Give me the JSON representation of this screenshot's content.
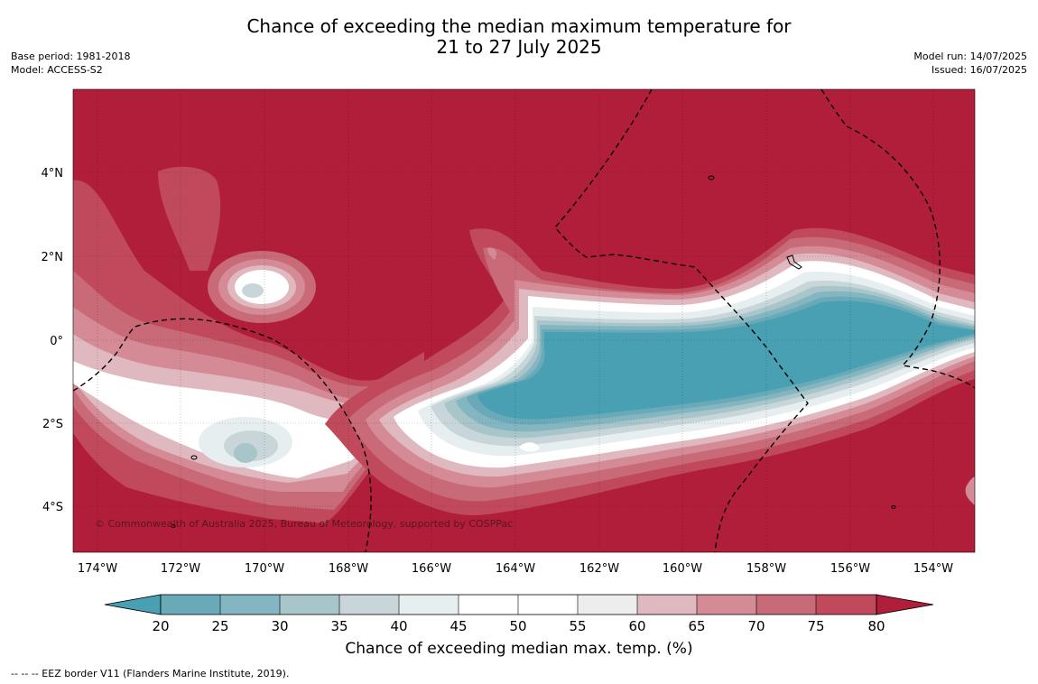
{
  "header": {
    "title_line1": "Chance of exceeding the median maximum temperature for",
    "title_line2": "21 to 27 July 2025",
    "base_period": "Base period: 1981-2018",
    "model": "Model: ACCESS-S2",
    "model_run": "Model run: 14/07/2025",
    "issued": "Issued: 16/07/2025"
  },
  "map": {
    "lat_labels": [
      "4°N",
      "2°N",
      "0°",
      "2°S",
      "4°S"
    ],
    "lon_labels": [
      "174°W",
      "172°W",
      "170°W",
      "168°W",
      "166°W",
      "164°W",
      "162°W",
      "160°W",
      "158°W",
      "156°W",
      "154°W"
    ],
    "copyright": "© Commonwealth of Australia 2025, Bureau of Meteorology, supported by COSPPac",
    "colors": {
      "above_80": "#b11e3a",
      "75_80": "#c04a5c",
      "70_75": "#c86a78",
      "65_70": "#d48b96",
      "60_65": "#e0b8bf",
      "55_60": "#ededed",
      "45_55": "#ffffff",
      "40_45": "#e6eef0",
      "35_40": "#c8d6da",
      "30_35": "#a8c5ca",
      "25_30": "#84b6c1",
      "20_25": "#6aaab8",
      "below_20": "#48a0b2"
    }
  },
  "colorbar": {
    "ticks": [
      "20",
      "25",
      "30",
      "35",
      "40",
      "45",
      "50",
      "55",
      "60",
      "65",
      "70",
      "75",
      "80"
    ],
    "label": "Chance of exceeding median max. temp. (%)"
  },
  "footer": {
    "legend": "--  --  -- EEZ border V11 (Flanders Marine Institute, 2019)."
  }
}
